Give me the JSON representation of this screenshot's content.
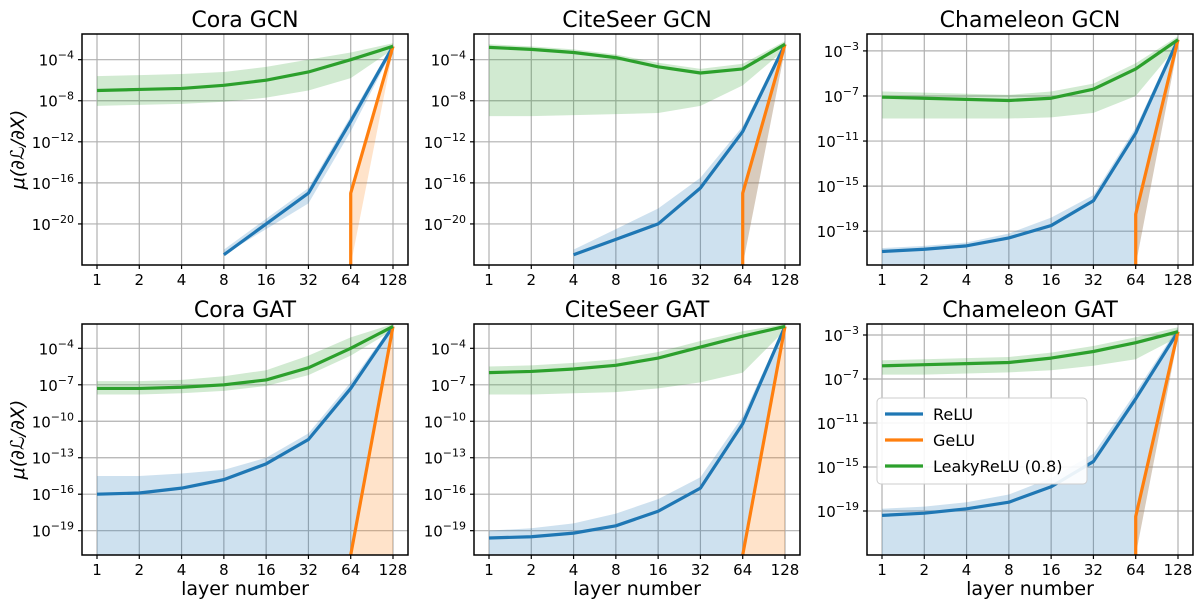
{
  "chart_data": [
    {
      "type": "line",
      "title": "Cora GCN",
      "xlabel": "",
      "ylabel": "μ(∂ℒ/∂X)",
      "log_y": true,
      "ylim_exp": [
        -24,
        -1.5
      ],
      "ytick_exps": [
        -20,
        -16,
        -12,
        -8,
        -4
      ],
      "x": [
        1,
        2,
        4,
        8,
        16,
        32,
        64,
        128
      ],
      "series": [
        {
          "name": "ReLU",
          "color": "#1f77b4",
          "values_exp": [
            null,
            null,
            null,
            -23,
            -20,
            -17,
            -10,
            -2.7
          ],
          "band_low": [
            null,
            null,
            null,
            -23,
            -20.5,
            -18,
            -11,
            -3
          ],
          "band_high": [
            null,
            null,
            null,
            -22.5,
            -19.5,
            -16.5,
            -9.5,
            -2.4
          ]
        },
        {
          "name": "GeLU",
          "color": "#ff7f0e",
          "values_exp": [
            null,
            null,
            null,
            null,
            null,
            null,
            -17,
            -2.7
          ],
          "band_low": [
            null,
            null,
            null,
            null,
            null,
            null,
            -24,
            -3.1
          ],
          "band_high": [
            null,
            null,
            null,
            null,
            null,
            null,
            -17,
            -2.3
          ],
          "drop_to_bottom_at_64": true
        },
        {
          "name": "LeakyReLU (0.8)",
          "color": "#2ca02c",
          "values_exp": [
            -7,
            -6.9,
            -6.8,
            -6.5,
            -6,
            -5.2,
            -4,
            -2.7
          ],
          "band_low": [
            -8.5,
            -8.4,
            -8.3,
            -8.1,
            -7.7,
            -7,
            -5.8,
            -3
          ],
          "band_high": [
            -5.6,
            -5.5,
            -5.4,
            -5.2,
            -4.7,
            -4,
            -3.3,
            -2.4
          ]
        }
      ]
    },
    {
      "type": "line",
      "title": "CiteSeer GCN",
      "xlabel": "",
      "ylabel": "",
      "log_y": true,
      "ylim_exp": [
        -24,
        -1.5
      ],
      "ytick_exps": [
        -20,
        -16,
        -12,
        -8,
        -4
      ],
      "x": [
        1,
        2,
        4,
        8,
        16,
        32,
        64,
        128
      ],
      "series": [
        {
          "name": "ReLU",
          "color": "#1f77b4",
          "values_exp": [
            null,
            null,
            -23,
            -21.5,
            -20,
            -16.5,
            -11,
            -2.5
          ],
          "band_low": [
            null,
            null,
            -24,
            -24,
            -24,
            -24,
            -24,
            -3
          ],
          "band_high": [
            null,
            null,
            -22.5,
            -20.5,
            -18.5,
            -15.5,
            -10.5,
            -2.2
          ]
        },
        {
          "name": "GeLU",
          "color": "#ff7f0e",
          "values_exp": [
            null,
            null,
            null,
            null,
            null,
            null,
            -17,
            -2.5
          ],
          "band_low": [
            null,
            null,
            null,
            null,
            null,
            null,
            -24,
            -3
          ],
          "band_high": [
            null,
            null,
            null,
            null,
            null,
            null,
            -17,
            -2.2
          ]
        },
        {
          "name": "LeakyReLU (0.8)",
          "color": "#2ca02c",
          "values_exp": [
            -2.8,
            -3,
            -3.3,
            -3.8,
            -4.7,
            -5.3,
            -4.9,
            -2.5
          ],
          "band_low": [
            -9.5,
            -9.5,
            -9.4,
            -9.3,
            -9.2,
            -8.5,
            -6.5,
            -3
          ],
          "band_high": [
            -2.5,
            -2.7,
            -3,
            -3.5,
            -4.3,
            -4.9,
            -4.4,
            -2.2
          ]
        }
      ]
    },
    {
      "type": "line",
      "title": "Chameleon GCN",
      "xlabel": "",
      "ylabel": "",
      "log_y": true,
      "ylim_exp": [
        -22,
        -1.5
      ],
      "ytick_exps": [
        -19,
        -15,
        -11,
        -7,
        -3
      ],
      "x": [
        1,
        2,
        4,
        8,
        16,
        32,
        64,
        128
      ],
      "series": [
        {
          "name": "ReLU",
          "color": "#1f77b4",
          "values_exp": [
            -20.8,
            -20.6,
            -20.3,
            -19.6,
            -18.5,
            -16.3,
            -10.3,
            -2
          ],
          "band_low": [
            -22,
            -22,
            -22,
            -22,
            -22,
            -22,
            -22,
            -2.5
          ],
          "band_high": [
            -20.5,
            -20.3,
            -20,
            -19.2,
            -17.8,
            -15.8,
            -9.8,
            -1.7
          ]
        },
        {
          "name": "GeLU",
          "color": "#ff7f0e",
          "values_exp": [
            null,
            null,
            null,
            null,
            null,
            null,
            -17.5,
            -2
          ],
          "band_low": [
            null,
            null,
            null,
            null,
            null,
            null,
            -22,
            -2.5
          ],
          "band_high": [
            null,
            null,
            null,
            null,
            null,
            null,
            -17.5,
            -1.7
          ]
        },
        {
          "name": "LeakyReLU (0.8)",
          "color": "#2ca02c",
          "values_exp": [
            -7.1,
            -7.2,
            -7.3,
            -7.4,
            -7.2,
            -6.4,
            -4.6,
            -2
          ],
          "band_low": [
            -9,
            -9,
            -9,
            -9,
            -8.9,
            -8.5,
            -7,
            -2.5
          ],
          "band_high": [
            -6.6,
            -6.7,
            -6.8,
            -6.9,
            -6.6,
            -5.9,
            -4.1,
            -1.7
          ]
        }
      ]
    },
    {
      "type": "line",
      "title": "Cora GAT",
      "xlabel": "layer number",
      "ylabel": "μ(∂ℒ/∂X)",
      "log_y": true,
      "ylim_exp": [
        -21,
        -2
      ],
      "ytick_exps": [
        -19,
        -16,
        -13,
        -10,
        -7,
        -4
      ],
      "x": [
        1,
        2,
        4,
        8,
        16,
        32,
        64,
        128
      ],
      "series": [
        {
          "name": "ReLU",
          "color": "#1f77b4",
          "values_exp": [
            -16,
            -15.9,
            -15.5,
            -14.8,
            -13.5,
            -11.5,
            -7.3,
            -2.2
          ],
          "band_low": [
            -21,
            -21,
            -21,
            -21,
            -21,
            -21,
            -21,
            -2.5
          ],
          "band_high": [
            -14.5,
            -14.5,
            -14.3,
            -14,
            -13,
            -11,
            -6.8,
            -2
          ]
        },
        {
          "name": "GeLU",
          "color": "#ff7f0e",
          "values_exp": [
            null,
            null,
            null,
            null,
            null,
            null,
            -21,
            -2.2
          ],
          "band_low": [
            null,
            null,
            null,
            null,
            null,
            null,
            -21,
            -21
          ],
          "band_high": [
            null,
            null,
            null,
            null,
            null,
            null,
            -21,
            -2
          ]
        },
        {
          "name": "LeakyReLU (0.8)",
          "color": "#2ca02c",
          "values_exp": [
            -7.3,
            -7.3,
            -7.2,
            -7.0,
            -6.6,
            -5.6,
            -4.0,
            -2.2
          ],
          "band_low": [
            -7.8,
            -7.8,
            -7.7,
            -7.5,
            -7.1,
            -6.2,
            -4.6,
            -2.5
          ],
          "band_high": [
            -6.7,
            -6.7,
            -6.6,
            -6.3,
            -5.8,
            -4.6,
            -3.1,
            -2
          ]
        }
      ]
    },
    {
      "type": "line",
      "title": "CiteSeer GAT",
      "xlabel": "layer number",
      "ylabel": "",
      "log_y": true,
      "ylim_exp": [
        -21,
        -2
      ],
      "ytick_exps": [
        -19,
        -16,
        -13,
        -10,
        -7,
        -4
      ],
      "x": [
        1,
        2,
        4,
        8,
        16,
        32,
        64,
        128
      ],
      "series": [
        {
          "name": "ReLU",
          "color": "#1f77b4",
          "values_exp": [
            -19.6,
            -19.5,
            -19.2,
            -18.6,
            -17.4,
            -15.5,
            -10.2,
            -2.2
          ],
          "band_low": [
            -21,
            -21,
            -21,
            -21,
            -21,
            -21,
            -21,
            -2.5
          ],
          "band_high": [
            -19,
            -18.8,
            -18.4,
            -17.6,
            -16.4,
            -14.6,
            -9.6,
            -2
          ]
        },
        {
          "name": "GeLU",
          "color": "#ff7f0e",
          "values_exp": [
            null,
            null,
            null,
            null,
            null,
            null,
            -21,
            -2.2
          ],
          "band_low": [
            null,
            null,
            null,
            null,
            null,
            null,
            -21,
            -21
          ],
          "band_high": [
            null,
            null,
            null,
            null,
            null,
            null,
            -21,
            -2
          ]
        },
        {
          "name": "LeakyReLU (0.8)",
          "color": "#2ca02c",
          "values_exp": [
            -6.0,
            -5.9,
            -5.7,
            -5.4,
            -4.8,
            -3.9,
            -3.0,
            -2.2
          ],
          "band_low": [
            -7.8,
            -7.8,
            -7.7,
            -7.6,
            -7.3,
            -6.8,
            -6.0,
            -2.5
          ],
          "band_high": [
            -5.5,
            -5.4,
            -5.2,
            -4.9,
            -4.3,
            -3.4,
            -2.6,
            -2
          ]
        }
      ]
    },
    {
      "type": "line",
      "title": "Chameleon GAT",
      "xlabel": "layer number",
      "ylabel": "",
      "log_y": true,
      "ylim_exp": [
        -23,
        -2
      ],
      "ytick_exps": [
        -19,
        -15,
        -11,
        -7,
        -3
      ],
      "x": [
        1,
        2,
        4,
        8,
        16,
        32,
        64,
        128
      ],
      "series": [
        {
          "name": "ReLU",
          "color": "#1f77b4",
          "values_exp": [
            -19.4,
            -19.2,
            -18.8,
            -18.2,
            -16.8,
            -14.5,
            -8.8,
            -2.7
          ],
          "band_low": [
            -23,
            -23,
            -23,
            -23,
            -23,
            -23,
            -23,
            -3.2
          ],
          "band_high": [
            -18.8,
            -18.6,
            -18.2,
            -17.5,
            -16,
            -13.8,
            -8.2,
            -2.3
          ]
        },
        {
          "name": "GeLU",
          "color": "#ff7f0e",
          "values_exp": [
            null,
            null,
            null,
            null,
            null,
            null,
            -19.5,
            -2.7
          ],
          "band_low": [
            null,
            null,
            null,
            null,
            null,
            null,
            -23,
            -3.2
          ],
          "band_high": [
            null,
            null,
            null,
            null,
            null,
            null,
            -19.5,
            -2.3
          ]
        },
        {
          "name": "LeakyReLU (0.8)",
          "color": "#2ca02c",
          "values_exp": [
            -5.8,
            -5.7,
            -5.6,
            -5.5,
            -5.1,
            -4.5,
            -3.7,
            -2.7
          ],
          "band_low": [
            -6.6,
            -6.6,
            -6.5,
            -6.4,
            -6.2,
            -5.8,
            -5.2,
            -3.2
          ],
          "band_high": [
            -5.3,
            -5.2,
            -5.1,
            -5,
            -4.6,
            -4,
            -3.2,
            -2.3
          ]
        }
      ]
    }
  ],
  "xtick_labels": [
    "1",
    "2",
    "4",
    "8",
    "16",
    "32",
    "64",
    "128"
  ],
  "legend": {
    "entries": [
      "ReLU",
      "GeLU",
      "LeakyReLU (0.8)"
    ],
    "placement": "center-left of Chameleon GAT panel"
  },
  "ylabel_text": "μ(∂ℒ/∂X)"
}
